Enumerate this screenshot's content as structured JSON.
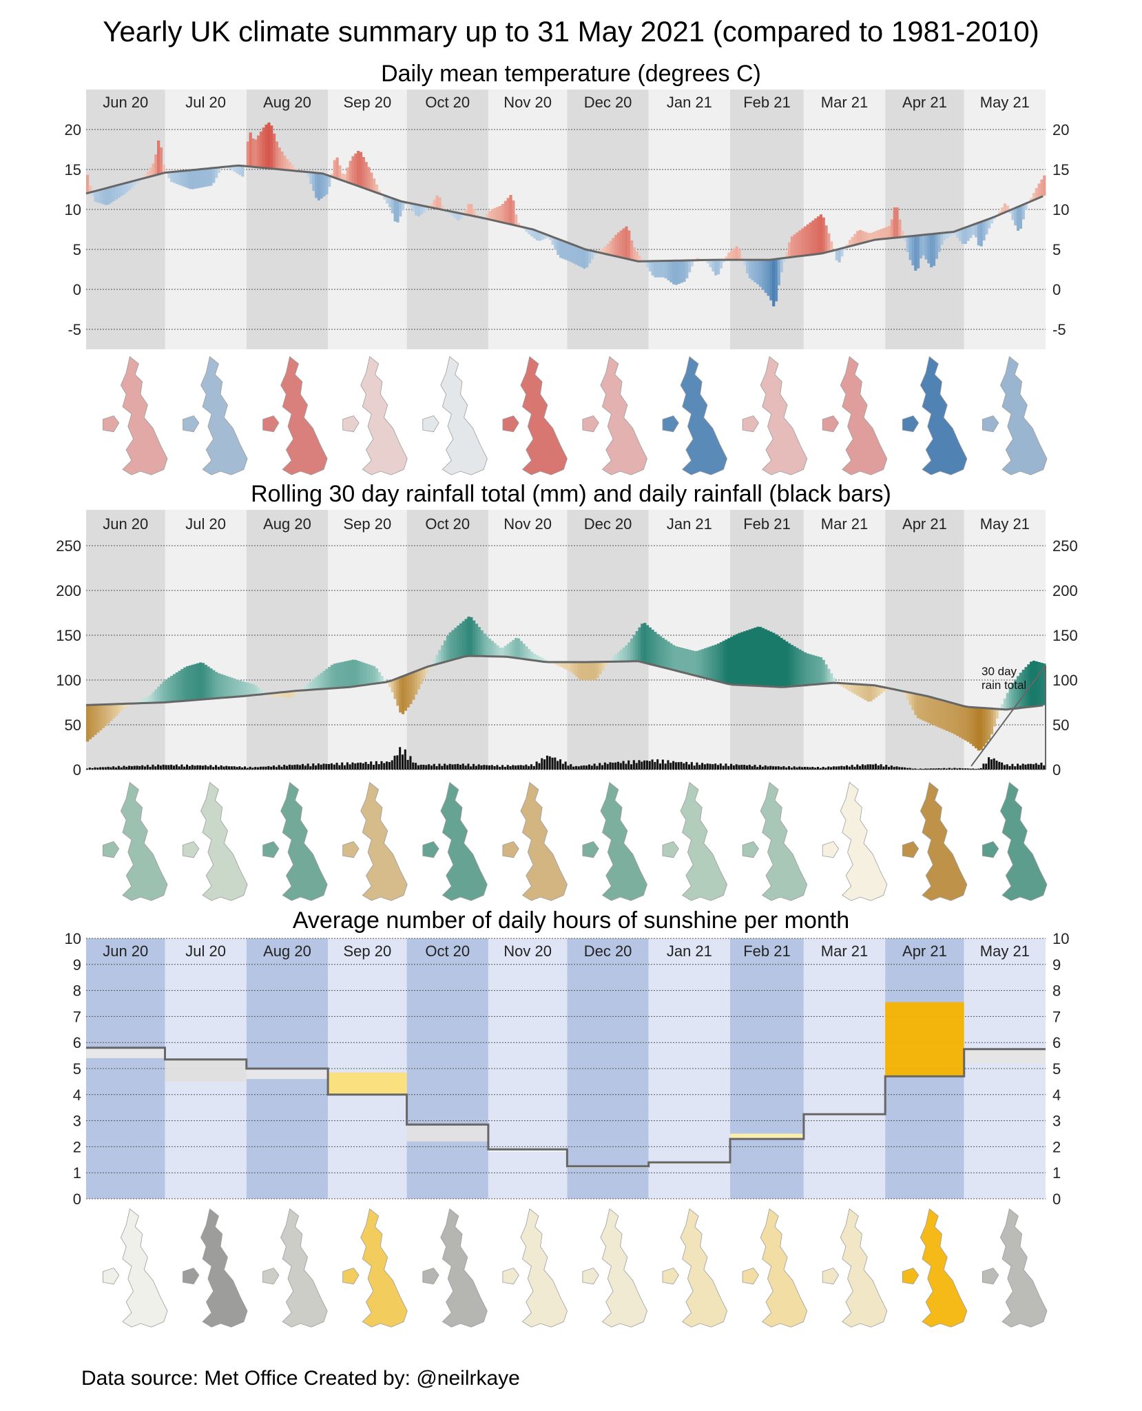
{
  "title": "Yearly UK climate summary up to 31 May 2021 (compared to 1981-2010)",
  "footer": "Data source: Met Office   Created by: @neilrkaye",
  "months": [
    "Jun 20",
    "Jul 20",
    "Aug 20",
    "Sep 20",
    "Oct 20",
    "Nov 20",
    "Dec 20",
    "Jan 21",
    "Feb 21",
    "Mar 21",
    "Apr 21",
    "May 21"
  ],
  "month_days": [
    30,
    31,
    31,
    30,
    31,
    30,
    31,
    31,
    28,
    31,
    30,
    31
  ],
  "colors": {
    "warm": "#c9261f",
    "cold": "#1b5fa0",
    "wet": "#1a7a6a",
    "dry": "#b07a22",
    "sunny": "#f5b400",
    "dull": "#b9b9b9",
    "normal_line": "#666666",
    "sun_band_a": "#b7c5e4",
    "sun_band_b": "#dfe5f4",
    "band_a": "#dcdcdc",
    "band_b": "#f0f0f0"
  },
  "chart_data": [
    {
      "type": "bar",
      "title": "Daily mean temperature (degrees C)",
      "x_axis": "months Jun 20 - May 21 (daily bars, anomaly relative to normal line)",
      "ylim": [
        -7.5,
        25
      ],
      "yticks": [
        -5,
        0,
        5,
        10,
        15,
        20
      ],
      "grid": true,
      "normal_monthly": [
        12.8,
        15.0,
        15.0,
        12.6,
        9.8,
        6.5,
        4.2,
        3.6,
        3.9,
        5.7,
        7.8,
        11.0
      ],
      "normal_curve_keypoints": [
        [
          0,
          12.0
        ],
        [
          30,
          14.6
        ],
        [
          58,
          15.5
        ],
        [
          90,
          14.5
        ],
        [
          120,
          11.0
        ],
        [
          150,
          9.0
        ],
        [
          170,
          7.5
        ],
        [
          190,
          5.0
        ],
        [
          210,
          3.5
        ],
        [
          240,
          3.7
        ],
        [
          260,
          3.7
        ],
        [
          280,
          4.5
        ],
        [
          300,
          6.2
        ],
        [
          330,
          7.2
        ],
        [
          345,
          9.0
        ],
        [
          365,
          11.8
        ]
      ],
      "daily_keypoints": [
        [
          0,
          15.0
        ],
        [
          3,
          11.0
        ],
        [
          8,
          10.5
        ],
        [
          15,
          12.0
        ],
        [
          22,
          14.0
        ],
        [
          26,
          16.0
        ],
        [
          28,
          19.5
        ],
        [
          29,
          16.0
        ],
        [
          32,
          13.5
        ],
        [
          40,
          12.5
        ],
        [
          48,
          13.0
        ],
        [
          52,
          15.5
        ],
        [
          55,
          15.0
        ],
        [
          60,
          14.0
        ],
        [
          62,
          20.0
        ],
        [
          64,
          18.5
        ],
        [
          68,
          20.5
        ],
        [
          70,
          21.0
        ],
        [
          73,
          18.0
        ],
        [
          76,
          16.5
        ],
        [
          80,
          15.0
        ],
        [
          84,
          14.5
        ],
        [
          88,
          11.0
        ],
        [
          92,
          12.0
        ],
        [
          95,
          17.0
        ],
        [
          98,
          14.0
        ],
        [
          101,
          16.5
        ],
        [
          104,
          17.5
        ],
        [
          108,
          15.0
        ],
        [
          112,
          12.0
        ],
        [
          116,
          10.0
        ],
        [
          118,
          8.0
        ],
        [
          122,
          11.0
        ],
        [
          126,
          9.0
        ],
        [
          130,
          10.0
        ],
        [
          134,
          12.0
        ],
        [
          136,
          10.0
        ],
        [
          142,
          8.5
        ],
        [
          146,
          11.0
        ],
        [
          150,
          8.5
        ],
        [
          154,
          10.0
        ],
        [
          158,
          10.5
        ],
        [
          162,
          12.0
        ],
        [
          164,
          8.5
        ],
        [
          168,
          7.0
        ],
        [
          172,
          6.0
        ],
        [
          176,
          6.5
        ],
        [
          180,
          4.0
        ],
        [
          184,
          3.5
        ],
        [
          190,
          2.5
        ],
        [
          194,
          4.5
        ],
        [
          198,
          5.5
        ],
        [
          202,
          7.0
        ],
        [
          206,
          8.0
        ],
        [
          208,
          5.5
        ],
        [
          212,
          3.5
        ],
        [
          216,
          1.5
        ],
        [
          220,
          1.5
        ],
        [
          224,
          0.5
        ],
        [
          228,
          1.0
        ],
        [
          232,
          4.0
        ],
        [
          236,
          3.5
        ],
        [
          240,
          1.5
        ],
        [
          244,
          4.5
        ],
        [
          248,
          5.5
        ],
        [
          252,
          1.5
        ],
        [
          256,
          0.5
        ],
        [
          260,
          -1.0
        ],
        [
          262,
          -2.5
        ],
        [
          264,
          1.5
        ],
        [
          268,
          6.5
        ],
        [
          272,
          7.5
        ],
        [
          276,
          8.5
        ],
        [
          280,
          9.5
        ],
        [
          284,
          5.5
        ],
        [
          286,
          3.0
        ],
        [
          290,
          6.0
        ],
        [
          294,
          7.5
        ],
        [
          298,
          7.0
        ],
        [
          302,
          7.5
        ],
        [
          306,
          8.0
        ],
        [
          308,
          11.0
        ],
        [
          310,
          8.0
        ],
        [
          313,
          4.0
        ],
        [
          316,
          2.0
        ],
        [
          318,
          4.5
        ],
        [
          322,
          2.5
        ],
        [
          326,
          6.0
        ],
        [
          330,
          7.0
        ],
        [
          334,
          5.5
        ],
        [
          338,
          7.0
        ],
        [
          340,
          5.0
        ],
        [
          344,
          8.0
        ],
        [
          348,
          10.0
        ],
        [
          350,
          11.0
        ],
        [
          352,
          9.0
        ],
        [
          355,
          7.0
        ],
        [
          358,
          10.5
        ],
        [
          362,
          13.0
        ],
        [
          365,
          14.5
        ]
      ]
    },
    {
      "type": "area",
      "title": "Rolling 30 day rainfall total (mm) and daily rainfall (black bars)",
      "ylim": [
        0,
        290
      ],
      "yticks": [
        0,
        50,
        100,
        150,
        200,
        250
      ],
      "grid": true,
      "annotation": "30 day rain total",
      "normal_curve_keypoints": [
        [
          0,
          72
        ],
        [
          30,
          75
        ],
        [
          60,
          82
        ],
        [
          80,
          88
        ],
        [
          100,
          92
        ],
        [
          115,
          98
        ],
        [
          130,
          115
        ],
        [
          145,
          127
        ],
        [
          160,
          126
        ],
        [
          175,
          120
        ],
        [
          190,
          120
        ],
        [
          210,
          121
        ],
        [
          225,
          110
        ],
        [
          245,
          95
        ],
        [
          265,
          92
        ],
        [
          285,
          97
        ],
        [
          300,
          94
        ],
        [
          320,
          82
        ],
        [
          335,
          70
        ],
        [
          350,
          67
        ],
        [
          365,
          72
        ]
      ],
      "rolling_keypoints": [
        [
          0,
          30
        ],
        [
          8,
          50
        ],
        [
          15,
          70
        ],
        [
          24,
          82
        ],
        [
          30,
          100
        ],
        [
          38,
          115
        ],
        [
          44,
          120
        ],
        [
          50,
          108
        ],
        [
          58,
          100
        ],
        [
          64,
          95
        ],
        [
          70,
          82
        ],
        [
          78,
          80
        ],
        [
          86,
          100
        ],
        [
          94,
          118
        ],
        [
          102,
          123
        ],
        [
          110,
          115
        ],
        [
          116,
          90
        ],
        [
          120,
          60
        ],
        [
          124,
          75
        ],
        [
          130,
          110
        ],
        [
          138,
          152
        ],
        [
          146,
          172
        ],
        [
          152,
          150
        ],
        [
          158,
          135
        ],
        [
          164,
          148
        ],
        [
          170,
          130
        ],
        [
          178,
          118
        ],
        [
          184,
          110
        ],
        [
          188,
          100
        ],
        [
          194,
          100
        ],
        [
          200,
          125
        ],
        [
          206,
          140
        ],
        [
          212,
          165
        ],
        [
          218,
          150
        ],
        [
          224,
          138
        ],
        [
          232,
          132
        ],
        [
          240,
          140
        ],
        [
          248,
          152
        ],
        [
          256,
          160
        ],
        [
          262,
          152
        ],
        [
          268,
          140
        ],
        [
          274,
          130
        ],
        [
          280,
          125
        ],
        [
          286,
          95
        ],
        [
          292,
          85
        ],
        [
          298,
          75
        ],
        [
          304,
          88
        ],
        [
          310,
          92
        ],
        [
          316,
          58
        ],
        [
          322,
          50
        ],
        [
          330,
          40
        ],
        [
          336,
          30
        ],
        [
          340,
          20
        ],
        [
          344,
          35
        ],
        [
          348,
          70
        ],
        [
          352,
          95
        ],
        [
          356,
          110
        ],
        [
          360,
          122
        ],
        [
          365,
          118
        ]
      ],
      "daily_rain_keypoints": [
        [
          0,
          2
        ],
        [
          12,
          4
        ],
        [
          30,
          6
        ],
        [
          50,
          5
        ],
        [
          64,
          3
        ],
        [
          78,
          6
        ],
        [
          98,
          8
        ],
        [
          116,
          10
        ],
        [
          120,
          28
        ],
        [
          126,
          6
        ],
        [
          142,
          7
        ],
        [
          158,
          5
        ],
        [
          170,
          6
        ],
        [
          176,
          18
        ],
        [
          186,
          4
        ],
        [
          200,
          9
        ],
        [
          216,
          12
        ],
        [
          232,
          8
        ],
        [
          250,
          6
        ],
        [
          264,
          4
        ],
        [
          280,
          3
        ],
        [
          300,
          7
        ],
        [
          316,
          1
        ],
        [
          330,
          2
        ],
        [
          340,
          1
        ],
        [
          344,
          16
        ],
        [
          350,
          6
        ],
        [
          365,
          8
        ]
      ]
    },
    {
      "type": "bar",
      "title": "Average number of daily hours of sunshine per month",
      "categories": [
        "Jun 20",
        "Jul 20",
        "Aug 20",
        "Sep 20",
        "Oct 20",
        "Nov 20",
        "Dec 20",
        "Jan 21",
        "Feb 21",
        "Mar 21",
        "Apr 21",
        "May 21"
      ],
      "ylim": [
        0,
        10
      ],
      "yticks": [
        0,
        1,
        2,
        3,
        4,
        5,
        6,
        7,
        8,
        9,
        10
      ],
      "grid": true,
      "series": [
        {
          "name": "actual",
          "values": [
            5.4,
            4.5,
            4.6,
            4.85,
            2.2,
            1.8,
            1.25,
            1.4,
            2.5,
            3.2,
            7.55,
            5.2
          ]
        },
        {
          "name": "normal",
          "values": [
            5.8,
            5.35,
            5.0,
            4.0,
            2.85,
            1.9,
            1.25,
            1.4,
            2.3,
            3.25,
            4.7,
            5.75
          ]
        }
      ]
    }
  ],
  "maps": {
    "temperature_tone": [
      0.35,
      -0.35,
      0.55,
      0.15,
      -0.05,
      0.6,
      0.3,
      -0.7,
      0.25,
      0.4,
      -0.75,
      -0.4
    ],
    "rain_tone": [
      0.4,
      0.2,
      0.6,
      -0.45,
      0.65,
      -0.5,
      0.55,
      0.3,
      0.35,
      0.0,
      -0.8,
      0.7
    ],
    "sun_tone": [
      0.0,
      -0.7,
      -0.3,
      0.6,
      -0.5,
      0.1,
      0.1,
      0.2,
      0.3,
      0.15,
      0.9,
      -0.45
    ]
  }
}
